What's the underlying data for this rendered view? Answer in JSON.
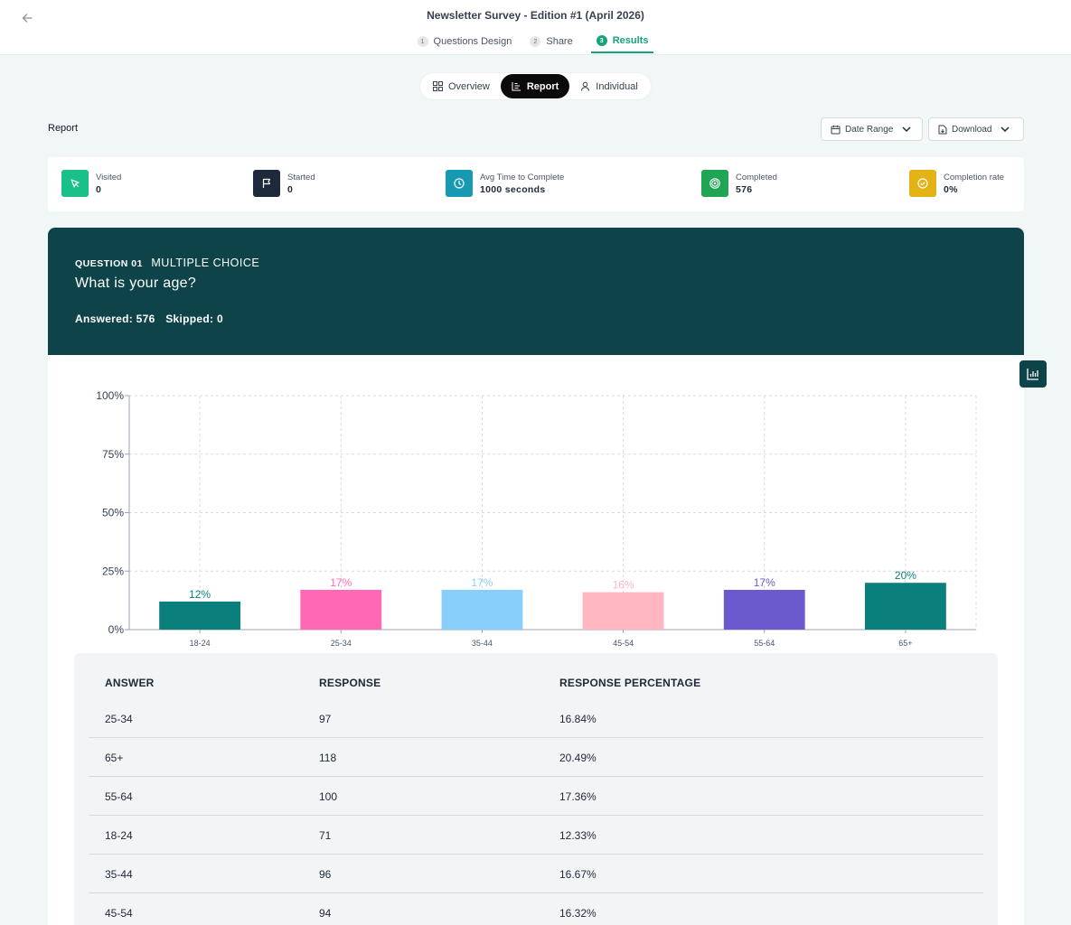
{
  "header": {
    "title": "Newsletter Survey - Edition #1 (April 2026)",
    "steps": [
      {
        "num": "1",
        "label": "Questions Design"
      },
      {
        "num": "2",
        "label": "Share"
      },
      {
        "num": "3",
        "label": "Results"
      }
    ],
    "active_step": "Results"
  },
  "view_toggle": {
    "overview": "Overview",
    "report": "Report",
    "individual": "Individual"
  },
  "toolbar": {
    "label": "Report",
    "date_range": "Date Range",
    "download": "Download"
  },
  "stats": [
    {
      "label": "Visited",
      "value": "0",
      "color": "#19c08a",
      "icon": "cursor-icon"
    },
    {
      "label": "Started",
      "value": "0",
      "color": "#1e2a3b",
      "icon": "flag-icon"
    },
    {
      "label": "Avg Time to Complete",
      "value": "1000 seconds",
      "color": "#1798b3",
      "icon": "clock-icon"
    },
    {
      "label": "Completed",
      "value": "576",
      "color": "#21a454",
      "icon": "target-icon"
    },
    {
      "label": "Completion rate",
      "value": "0%",
      "color": "#e3b215",
      "icon": "check-circle-icon"
    }
  ],
  "question": {
    "number": "QUESTION 01",
    "type": "MULTIPLE CHOICE",
    "text": "What is your age?",
    "answered": "Answered: 576",
    "skipped": "Skipped: 0"
  },
  "chart_data": {
    "type": "bar",
    "categories": [
      "18-24",
      "25-34",
      "35-44",
      "45-54",
      "55-64",
      "65+"
    ],
    "values": [
      12,
      17,
      17,
      16,
      17,
      20
    ],
    "labels": [
      "12%",
      "17%",
      "17%",
      "16%",
      "17%",
      "20%"
    ],
    "colors": [
      "#0a7f7b",
      "#ff69b4",
      "#87cefa",
      "#ffb6c1",
      "#6a5acd",
      "#0a7f7b"
    ],
    "yticks": [
      "0%",
      "25%",
      "50%",
      "75%",
      "100%"
    ],
    "ylim": [
      0,
      100
    ],
    "grid": true
  },
  "table": {
    "headers": [
      "ANSWER",
      "RESPONSE",
      "RESPONSE PERCENTAGE"
    ],
    "rows": [
      [
        "25-34",
        "97",
        "16.84%"
      ],
      [
        "65+",
        "118",
        "20.49%"
      ],
      [
        "55-64",
        "100",
        "17.36%"
      ],
      [
        "18-24",
        "71",
        "12.33%"
      ],
      [
        "35-44",
        "96",
        "16.67%"
      ],
      [
        "45-54",
        "94",
        "16.32%"
      ]
    ]
  }
}
